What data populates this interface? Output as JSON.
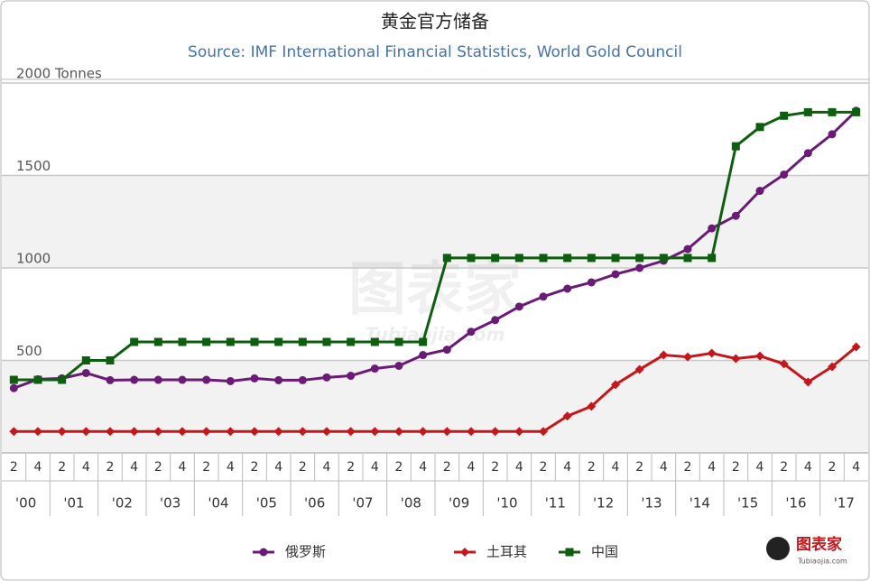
{
  "chart_data": {
    "type": "line",
    "title": "黄金官方储备",
    "subtitle": "Source: IMF International Financial Statistics, World Gold Council",
    "categories": [
      "2",
      "4",
      "2",
      "4",
      "2",
      "4",
      "2",
      "4",
      "2",
      "4",
      "2",
      "4",
      "2",
      "4",
      "2",
      "4",
      "2",
      "4",
      "2",
      "4",
      "2",
      "4",
      "2",
      "4",
      "2",
      "4",
      "2",
      "4",
      "2",
      "4",
      "2",
      "4",
      "2",
      "4",
      "2",
      "4"
    ],
    "years": [
      "'00",
      "'01",
      "'02",
      "'03",
      "'04",
      "'05",
      "'06",
      "'07",
      "'08",
      "'09",
      "'10",
      "'11",
      "'12",
      "'13",
      "'14",
      "'15",
      "'16",
      "'17"
    ],
    "series": [
      {
        "name": "俄罗斯",
        "color": "#6a1b76",
        "marker": "circle",
        "values": [
          350,
          398,
          403,
          432,
          393,
          395,
          395,
          395,
          395,
          388,
          403,
          393,
          393,
          408,
          417,
          456,
          471,
          529,
          558,
          655,
          718,
          791,
          845,
          888,
          922,
          966,
          1000,
          1039,
          1102,
          1214,
          1282,
          1417,
          1505,
          1621,
          1723,
          1850
        ]
      },
      {
        "name": "土耳其",
        "color": "#c4171c",
        "marker": "diamond",
        "values": [
          116,
          116,
          116,
          116,
          116,
          116,
          116,
          116,
          116,
          116,
          116,
          116,
          116,
          116,
          116,
          116,
          116,
          116,
          116,
          116,
          116,
          116,
          116,
          199,
          252,
          369,
          451,
          529,
          519,
          539,
          510,
          524,
          481,
          383,
          466,
          573
        ]
      },
      {
        "name": "中国",
        "color": "#0e5e10",
        "marker": "square",
        "values": [
          395,
          395,
          395,
          500,
          500,
          600,
          600,
          600,
          600,
          600,
          600,
          600,
          600,
          600,
          600,
          600,
          600,
          600,
          1054,
          1054,
          1054,
          1054,
          1054,
          1054,
          1054,
          1054,
          1054,
          1054,
          1054,
          1054,
          1658,
          1762,
          1823,
          1842,
          1842,
          1842
        ]
      }
    ],
    "ylim": [
      0,
      2000
    ],
    "yticks": [
      500,
      1000,
      1500,
      {
        "value": 2000,
        "label": "2000 Tonnes"
      }
    ],
    "grid": true,
    "legend": "bottom",
    "watermark": "图表家",
    "watermark_url": "Tubiaojia.com"
  }
}
